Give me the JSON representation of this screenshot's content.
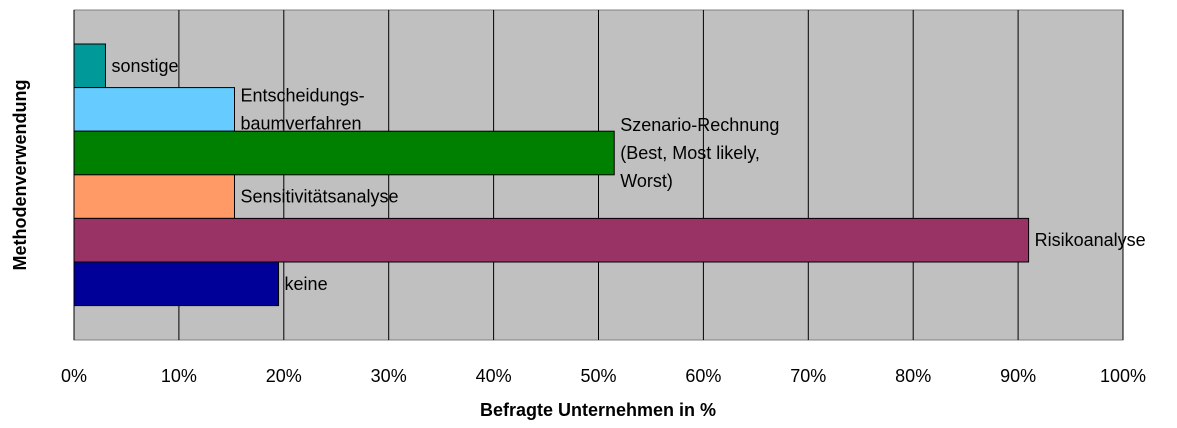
{
  "chart_data": {
    "type": "bar",
    "orientation": "horizontal",
    "x_label": "Befragte Unternehmen in %",
    "y_label": "Methodenverwendung",
    "categories": [
      "sonstige",
      "Entscheidungs-\nbaumverfahren",
      "Szenario-Rechnung\n(Best, Most likely,\nWorst)",
      "Sensitivitätsanalyse",
      "Risikoanalyse",
      "keine"
    ],
    "values": [
      3,
      15.3,
      51.5,
      15.3,
      91,
      19.5
    ],
    "colors": [
      "#009999",
      "#66ccff",
      "#008000",
      "#ff9966",
      "#993366",
      "#000099"
    ],
    "xlim": [
      0,
      100
    ],
    "xticks": [
      {
        "value": 0,
        "label": "0%"
      },
      {
        "value": 10,
        "label": "10%"
      },
      {
        "value": 20,
        "label": "20%"
      },
      {
        "value": 30,
        "label": "30%"
      },
      {
        "value": 40,
        "label": "40%"
      },
      {
        "value": 50,
        "label": "50%"
      },
      {
        "value": 60,
        "label": "60%"
      },
      {
        "value": 70,
        "label": "70%"
      },
      {
        "value": 80,
        "label": "80%"
      },
      {
        "value": 90,
        "label": "90%"
      },
      {
        "value": 100,
        "label": "100%"
      }
    ],
    "grid": true
  }
}
